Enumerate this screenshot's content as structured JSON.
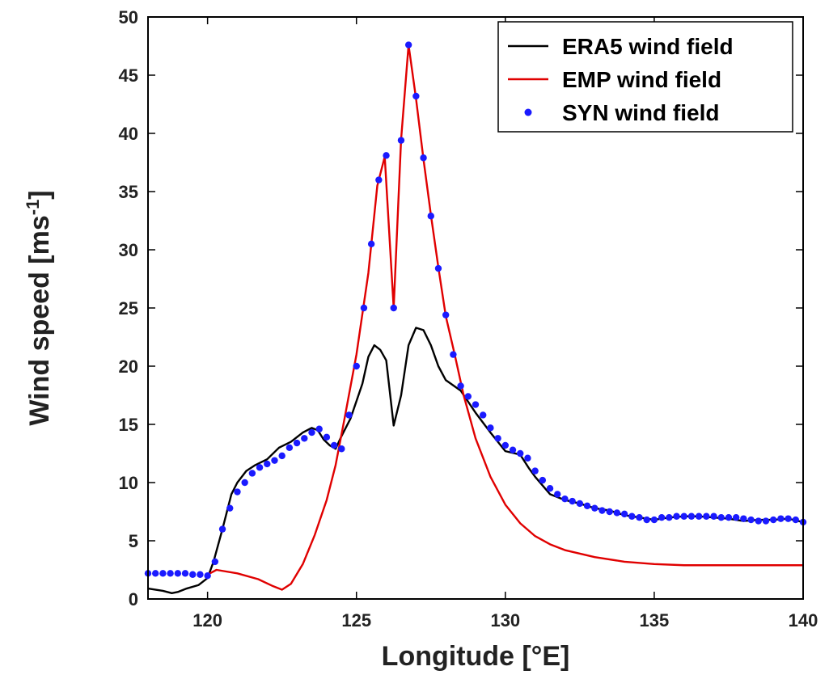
{
  "chart_data": {
    "type": "line",
    "title": "",
    "xlabel": "Longitude [°E]",
    "ylabel_main": "Wind speed [ms",
    "ylabel_sup": "-1",
    "ylabel_end": "]",
    "xlim": [
      118,
      140
    ],
    "ylim": [
      0,
      50
    ],
    "xticks": [
      120,
      125,
      130,
      135,
      140
    ],
    "yticks": [
      0,
      5,
      10,
      15,
      20,
      25,
      30,
      35,
      40,
      45,
      50
    ],
    "grid": false,
    "legend_position": "top-right",
    "series": [
      {
        "name": "ERA5 wind field",
        "style": "line",
        "color": "#000000",
        "x": [
          118.0,
          118.5,
          118.8,
          119.0,
          119.3,
          119.7,
          120.0,
          120.2,
          120.5,
          120.8,
          121.0,
          121.3,
          121.6,
          122.0,
          122.4,
          122.8,
          123.2,
          123.5,
          123.7,
          123.9,
          124.1,
          124.3,
          124.5,
          124.8,
          125.0,
          125.2,
          125.4,
          125.6,
          125.8,
          126.0,
          126.25,
          126.5,
          126.75,
          127.0,
          127.25,
          127.5,
          127.75,
          128.0,
          128.5,
          129.0,
          129.5,
          130.0,
          130.5,
          130.8,
          131.0,
          131.5,
          132.0,
          132.5,
          133.0,
          133.5,
          134.0,
          134.5,
          135.0,
          135.5,
          136.0,
          136.5,
          137.0,
          137.5,
          138.0,
          138.5,
          139.0,
          139.5,
          140.0
        ],
        "y": [
          0.9,
          0.7,
          0.5,
          0.6,
          0.9,
          1.2,
          1.8,
          3.2,
          6.0,
          9.0,
          10.0,
          11.0,
          11.5,
          12.0,
          13.0,
          13.5,
          14.3,
          14.7,
          14.5,
          13.7,
          13.2,
          12.9,
          14.0,
          15.5,
          17.0,
          18.5,
          20.8,
          21.8,
          21.4,
          20.5,
          14.9,
          17.5,
          21.8,
          23.3,
          23.1,
          21.8,
          20.0,
          18.8,
          17.9,
          16.0,
          14.3,
          12.7,
          12.4,
          11.2,
          10.5,
          9.0,
          8.5,
          8.2,
          7.8,
          7.6,
          7.2,
          7.0,
          6.8,
          7.0,
          7.1,
          7.1,
          7.0,
          6.9,
          6.7,
          6.8,
          6.8,
          6.9,
          6.6
        ]
      },
      {
        "name": "EMP wind field",
        "style": "line",
        "color": "#e00000",
        "x": [
          120.0,
          120.3,
          121.0,
          121.7,
          122.2,
          122.5,
          122.8,
          123.2,
          123.6,
          124.0,
          124.3,
          124.6,
          125.0,
          125.4,
          125.7,
          125.95,
          126.25,
          126.5,
          126.75,
          127.0,
          127.25,
          127.5,
          127.75,
          128.0,
          128.3,
          128.6,
          129.0,
          129.5,
          130.0,
          130.5,
          131.0,
          131.5,
          132.0,
          133.0,
          134.0,
          135.0,
          136.0,
          137.0,
          138.0,
          139.0,
          140.0
        ],
        "y": [
          2.1,
          2.5,
          2.2,
          1.7,
          1.1,
          0.8,
          1.3,
          3.0,
          5.5,
          8.5,
          11.5,
          15.5,
          21.0,
          28.0,
          35.5,
          38.0,
          25.0,
          39.5,
          47.6,
          43.0,
          37.8,
          33.0,
          28.5,
          24.3,
          21.0,
          17.5,
          13.8,
          10.5,
          8.1,
          6.5,
          5.4,
          4.7,
          4.2,
          3.6,
          3.2,
          3.0,
          2.9,
          2.9,
          2.9,
          2.9,
          2.9
        ]
      },
      {
        "name": "SYN wind field",
        "style": "markers",
        "color": "#1a1aff",
        "x": [
          118.0,
          118.25,
          118.5,
          118.75,
          119.0,
          119.25,
          119.5,
          119.75,
          120.0,
          120.25,
          120.5,
          120.75,
          121.0,
          121.25,
          121.5,
          121.75,
          122.0,
          122.25,
          122.5,
          122.75,
          123.0,
          123.25,
          123.5,
          123.75,
          124.0,
          124.25,
          124.5,
          124.75,
          125.0,
          125.25,
          125.5,
          125.75,
          126.0,
          126.25,
          126.5,
          126.75,
          127.0,
          127.25,
          127.5,
          127.75,
          128.0,
          128.25,
          128.5,
          128.75,
          129.0,
          129.25,
          129.5,
          129.75,
          130.0,
          130.25,
          130.5,
          130.75,
          131.0,
          131.25,
          131.5,
          131.75,
          132.0,
          132.25,
          132.5,
          132.75,
          133.0,
          133.25,
          133.5,
          133.75,
          134.0,
          134.25,
          134.5,
          134.75,
          135.0,
          135.25,
          135.5,
          135.75,
          136.0,
          136.25,
          136.5,
          136.75,
          137.0,
          137.25,
          137.5,
          137.75,
          138.0,
          138.25,
          138.5,
          138.75,
          139.0,
          139.25,
          139.5,
          139.75,
          140.0
        ],
        "y": [
          2.2,
          2.2,
          2.2,
          2.2,
          2.2,
          2.2,
          2.1,
          2.1,
          2.0,
          3.2,
          6.0,
          7.8,
          9.2,
          10.0,
          10.8,
          11.3,
          11.6,
          11.9,
          12.3,
          13.0,
          13.4,
          13.8,
          14.3,
          14.6,
          13.9,
          13.2,
          12.9,
          15.8,
          20.0,
          25.0,
          30.5,
          36.0,
          38.1,
          25.0,
          39.4,
          47.6,
          43.2,
          37.9,
          32.9,
          28.4,
          24.4,
          21.0,
          18.3,
          17.4,
          16.7,
          15.8,
          14.7,
          13.8,
          13.2,
          12.8,
          12.5,
          12.1,
          11.0,
          10.2,
          9.5,
          9.0,
          8.6,
          8.4,
          8.2,
          8.0,
          7.8,
          7.6,
          7.5,
          7.4,
          7.3,
          7.1,
          7.0,
          6.8,
          6.8,
          7.0,
          7.0,
          7.1,
          7.1,
          7.1,
          7.1,
          7.1,
          7.1,
          7.0,
          7.0,
          7.0,
          6.9,
          6.8,
          6.7,
          6.7,
          6.8,
          6.9,
          6.9,
          6.8,
          6.6
        ]
      }
    ]
  }
}
